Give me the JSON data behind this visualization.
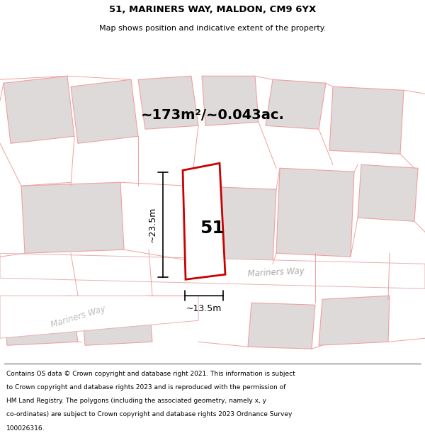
{
  "title": "51, MARINERS WAY, MALDON, CM9 6YX",
  "subtitle": "Map shows position and indicative extent of the property.",
  "area_label": "~173m²/~0.043ac.",
  "plot_number": "51",
  "dim_height": "~23.5m",
  "dim_width": "~13.5m",
  "street_label_upper": "Mariners Way",
  "street_label_lower": "Mariners Way",
  "footer_lines": [
    "Contains OS data © Crown copyright and database right 2021. This information is subject",
    "to Crown copyright and database rights 2023 and is reproduced with the permission of",
    "HM Land Registry. The polygons (including the associated geometry, namely x, y",
    "co-ordinates) are subject to Crown copyright and database rights 2023 Ordnance Survey",
    "100026316."
  ],
  "bg_color": "#f2eded",
  "plot_fill": "#ffffff",
  "plot_edge": "#cc0000",
  "gray_fill": "#dedada",
  "pink_line": "#f0a0a0",
  "road_fill": "#ffffff",
  "road_edge": "#e8b0b0"
}
